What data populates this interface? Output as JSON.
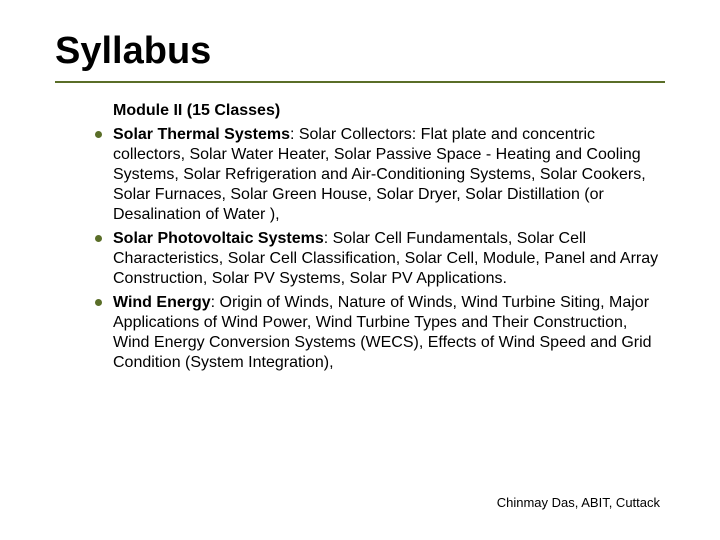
{
  "title": "Syllabus",
  "module_heading": "Module II (15 Classes)",
  "bullets": [
    {
      "lead": "Solar Thermal Systems",
      "rest": ": Solar Collectors: Flat plate and concentric collectors, Solar Water Heater, Solar Passive Space - Heating and Cooling Systems, Solar Refrigeration and Air-Conditioning Systems, Solar Cookers, Solar Furnaces, Solar Green House, Solar Dryer, Solar Distillation (or Desalination of Water ),"
    },
    {
      "lead": "Solar Photovoltaic Systems",
      "rest": ": Solar Cell Fundamentals, Solar Cell Characteristics, Solar Cell Classification, Solar Cell, Module, Panel and Array Construction, Solar PV Systems, Solar PV Applications."
    },
    {
      "lead": "Wind  Energy",
      "rest": ":  Origin of Winds, Nature of Winds, Wind Turbine Siting, Major Applications of Wind Power, Wind Turbine Types and Their Construction, Wind Energy Conversion Systems (WECS), Effects of Wind Speed and Grid Condition (System Integration),"
    }
  ],
  "footer": "Chinmay Das, ABIT, Cuttack",
  "colors": {
    "accent": "#5a6e28",
    "text": "#000000",
    "background": "#ffffff"
  },
  "font_sizes": {
    "title": 38,
    "body": 16,
    "footer": 13
  }
}
